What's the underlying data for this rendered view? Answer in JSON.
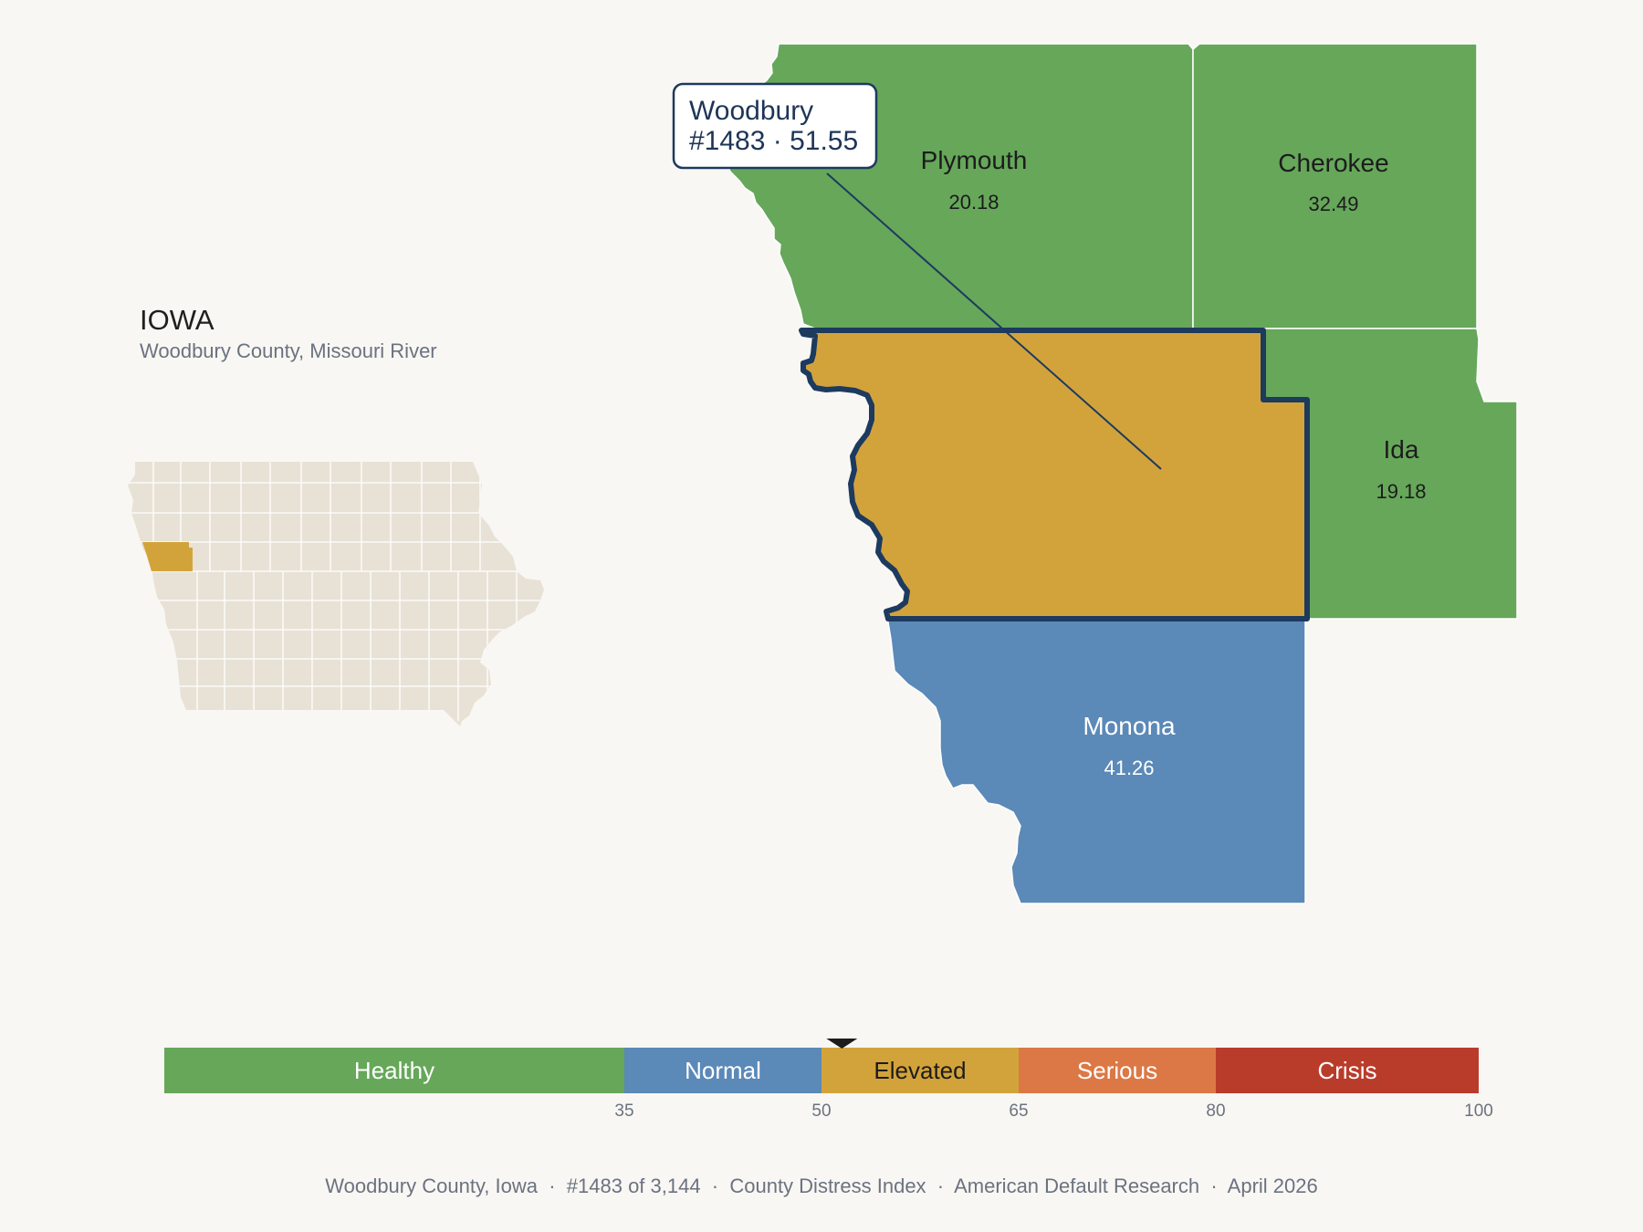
{
  "state": {
    "title": "IOWA",
    "subtitle": "Woodbury County, Missouri River"
  },
  "colors": {
    "healthy": "#66a75a",
    "normal": "#5b89b8",
    "elevated": "#d3a33b",
    "serious": "#dc7845",
    "crisis": "#b93c2b",
    "state_fill": "#e8e2d6",
    "outline": "#1d3a5f",
    "background": "#f9f7f3"
  },
  "counties": [
    {
      "name": "Plymouth",
      "value": "20.18",
      "category": "Healthy"
    },
    {
      "name": "Cherokee",
      "value": "32.49",
      "category": "Healthy"
    },
    {
      "name": "Ida",
      "value": "19.18",
      "category": "Healthy"
    },
    {
      "name": "Monona",
      "value": "41.26",
      "category": "Normal"
    },
    {
      "name": "Woodbury",
      "value": "51.55",
      "category": "Elevated",
      "highlighted": true
    }
  ],
  "callout": {
    "line1": "Woodbury",
    "line2": "#1483 · 51.55"
  },
  "scale": {
    "min": 0,
    "max": 100,
    "marker_value": 51.55,
    "bands": [
      {
        "label": "Healthy",
        "from": 0,
        "to": 35
      },
      {
        "label": "Normal",
        "from": 35,
        "to": 50
      },
      {
        "label": "Elevated",
        "from": 50,
        "to": 65
      },
      {
        "label": "Serious",
        "from": 65,
        "to": 80
      },
      {
        "label": "Crisis",
        "from": 80,
        "to": 100
      }
    ],
    "ticks": [
      "35",
      "50",
      "65",
      "80",
      "100"
    ]
  },
  "footer": {
    "text": "Woodbury County, Iowa  ·  #1483 of 3,144  ·  County Distress Index  ·  American Default Research  ·  April 2026"
  }
}
